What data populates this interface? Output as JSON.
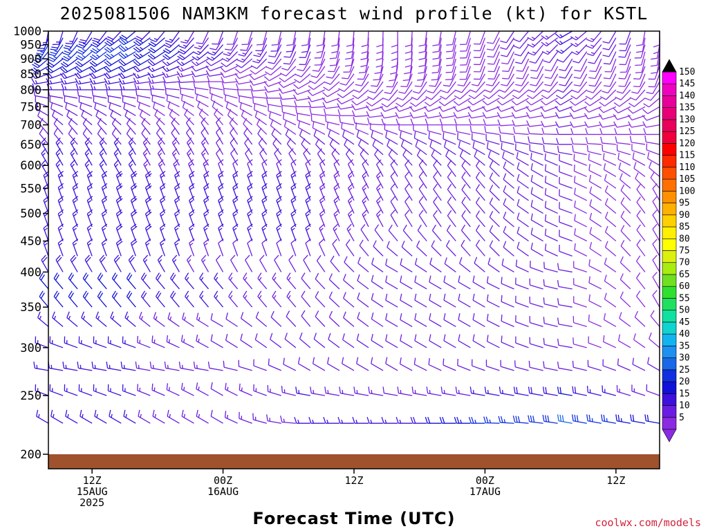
{
  "chart_data": {
    "type": "wind_barb_profile",
    "title": "2025081506 NAM3KM forecast wind profile (kt) for KSTL",
    "xlabel": "Forecast Time (UTC)",
    "credit": "coolwx.com/models",
    "y_axis": {
      "label": "",
      "scale": "log_pressure",
      "range_hpa": [
        1000,
        200
      ],
      "ticks": [
        "200",
        "250",
        "300",
        "350",
        "400",
        "450",
        "500",
        "550",
        "600",
        "650",
        "700",
        "750",
        "800",
        "850",
        "900",
        "950",
        "1000"
      ]
    },
    "x_axis": {
      "range_hours": [
        0,
        84
      ],
      "ticks": [
        {
          "hour": 6,
          "lines": [
            "12Z",
            "15AUG",
            "2025"
          ]
        },
        {
          "hour": 24,
          "lines": [
            "00Z",
            "16AUG"
          ]
        },
        {
          "hour": 42,
          "lines": [
            "12Z"
          ]
        },
        {
          "hour": 60,
          "lines": [
            "00Z",
            "17AUG"
          ]
        },
        {
          "hour": 78,
          "lines": [
            "12Z"
          ]
        }
      ]
    },
    "colorbar": {
      "units": "kt",
      "labels": [
        "5",
        "10",
        "15",
        "20",
        "25",
        "30",
        "35",
        "40",
        "45",
        "50",
        "55",
        "60",
        "65",
        "70",
        "75",
        "80",
        "85",
        "90",
        "95",
        "100",
        "105",
        "110",
        "115",
        "120",
        "125",
        "130",
        "135",
        "140",
        "145",
        "150"
      ],
      "colors": [
        "#8a2be2",
        "#6a1de0",
        "#3d10dd",
        "#1010d8",
        "#1030e0",
        "#1868e8",
        "#1e90f0",
        "#12b4f0",
        "#10d4d0",
        "#10e0a0",
        "#20e060",
        "#30e030",
        "#70e020",
        "#a8ec10",
        "#dcf010",
        "#ffff00",
        "#fff000",
        "#ffd000",
        "#ffb000",
        "#ff9000",
        "#ff7000",
        "#ff5000",
        "#ff2a00",
        "#ff0000",
        "#f0003c",
        "#e8005a",
        "#e80078",
        "#e8009a",
        "#f000c0",
        "#ff00ff"
      ]
    },
    "barb_levels_hpa": [
      1000,
      975,
      950,
      925,
      900,
      875,
      850,
      825,
      800,
      775,
      750,
      725,
      700,
      675,
      650,
      625,
      600,
      575,
      550,
      525,
      500,
      475,
      450,
      425,
      400,
      375,
      350,
      325,
      300,
      275,
      250,
      225
    ],
    "barb_times_hours": [
      0,
      2,
      4,
      6,
      8,
      10,
      12,
      14,
      16,
      18,
      20,
      22,
      24,
      26,
      28,
      30,
      32,
      34,
      36,
      38,
      40,
      42,
      44,
      46,
      48,
      50,
      52,
      54,
      56,
      58,
      60,
      62,
      64,
      66,
      68,
      70,
      72,
      74,
      76,
      78,
      80,
      82,
      84
    ],
    "barb_profiles": [
      {
        "hour": 0,
        "speed_kt": [
          15,
          20,
          25,
          25,
          22,
          20,
          18,
          15,
          15,
          12,
          10,
          10,
          10,
          12,
          12,
          15,
          15,
          15,
          15,
          15,
          15,
          15,
          15,
          15,
          18,
          20,
          20,
          15,
          15,
          15,
          15,
          15
        ],
        "dir_deg": [
          190,
          200,
          210,
          220,
          230,
          240,
          250,
          260,
          270,
          280,
          290,
          300,
          310,
          320,
          320,
          330,
          330,
          330,
          340,
          340,
          340,
          340,
          340,
          340,
          330,
          320,
          320,
          310,
          290,
          280,
          290,
          300
        ]
      },
      {
        "hour": 12,
        "speed_kt": [
          20,
          25,
          25,
          25,
          22,
          20,
          18,
          15,
          15,
          12,
          10,
          10,
          10,
          12,
          12,
          15,
          15,
          15,
          18,
          18,
          18,
          18,
          18,
          18,
          18,
          20,
          20,
          15,
          15,
          15,
          15,
          15
        ],
        "dir_deg": [
          230,
          240,
          240,
          240,
          240,
          245,
          250,
          260,
          270,
          280,
          290,
          300,
          310,
          320,
          320,
          330,
          330,
          330,
          340,
          340,
          340,
          340,
          340,
          340,
          330,
          320,
          320,
          310,
          290,
          280,
          290,
          300
        ]
      },
      {
        "hour": 24,
        "speed_kt": [
          10,
          12,
          15,
          15,
          12,
          10,
          10,
          8,
          8,
          8,
          8,
          8,
          8,
          10,
          10,
          12,
          12,
          12,
          15,
          15,
          15,
          15,
          15,
          12,
          12,
          15,
          15,
          12,
          12,
          12,
          12,
          12
        ],
        "dir_deg": [
          200,
          210,
          220,
          230,
          240,
          250,
          260,
          270,
          280,
          290,
          300,
          310,
          320,
          330,
          330,
          330,
          330,
          340,
          340,
          340,
          340,
          340,
          340,
          340,
          330,
          320,
          320,
          300,
          300,
          280,
          300,
          300
        ]
      },
      {
        "hour": 36,
        "speed_kt": [
          8,
          10,
          10,
          10,
          8,
          8,
          8,
          8,
          8,
          8,
          8,
          8,
          8,
          8,
          10,
          10,
          12,
          12,
          15,
          15,
          15,
          15,
          15,
          12,
          12,
          12,
          12,
          12,
          12,
          12,
          15,
          15
        ],
        "dir_deg": [
          190,
          190,
          200,
          200,
          210,
          220,
          230,
          240,
          250,
          260,
          270,
          280,
          290,
          300,
          310,
          320,
          330,
          340,
          340,
          340,
          340,
          340,
          340,
          340,
          330,
          320,
          320,
          320,
          310,
          300,
          280,
          270
        ]
      },
      {
        "hour": 48,
        "speed_kt": [
          8,
          8,
          8,
          8,
          8,
          8,
          8,
          8,
          8,
          8,
          8,
          8,
          8,
          8,
          10,
          10,
          10,
          10,
          12,
          12,
          12,
          12,
          10,
          10,
          10,
          10,
          10,
          10,
          10,
          12,
          12,
          15
        ],
        "dir_deg": [
          180,
          180,
          180,
          180,
          185,
          190,
          200,
          210,
          220,
          230,
          250,
          260,
          270,
          290,
          300,
          310,
          320,
          330,
          330,
          330,
          330,
          330,
          320,
          310,
          300,
          300,
          300,
          300,
          300,
          300,
          280,
          270
        ]
      },
      {
        "hour": 60,
        "speed_kt": [
          8,
          8,
          8,
          8,
          8,
          8,
          8,
          8,
          8,
          8,
          8,
          8,
          8,
          8,
          10,
          10,
          10,
          10,
          10,
          10,
          10,
          10,
          10,
          10,
          10,
          10,
          10,
          10,
          10,
          12,
          15,
          25
        ],
        "dir_deg": [
          200,
          200,
          200,
          200,
          200,
          200,
          210,
          220,
          230,
          240,
          250,
          260,
          270,
          280,
          290,
          300,
          310,
          320,
          320,
          320,
          320,
          320,
          320,
          320,
          310,
          300,
          300,
          300,
          300,
          290,
          280,
          270
        ]
      },
      {
        "hour": 72,
        "speed_kt": [
          15,
          15,
          15,
          12,
          10,
          10,
          10,
          10,
          10,
          10,
          10,
          10,
          10,
          10,
          10,
          10,
          10,
          10,
          10,
          10,
          10,
          10,
          10,
          10,
          10,
          10,
          10,
          10,
          10,
          12,
          20,
          30
        ],
        "dir_deg": [
          240,
          240,
          230,
          220,
          210,
          210,
          210,
          220,
          230,
          240,
          250,
          260,
          260,
          270,
          270,
          280,
          290,
          290,
          290,
          290,
          290,
          290,
          290,
          290,
          280,
          280,
          280,
          280,
          280,
          280,
          280,
          280
        ]
      },
      {
        "hour": 84,
        "speed_kt": [
          8,
          8,
          8,
          8,
          8,
          8,
          8,
          8,
          8,
          8,
          8,
          8,
          8,
          8,
          8,
          8,
          8,
          8,
          8,
          8,
          8,
          8,
          8,
          8,
          8,
          8,
          8,
          8,
          8,
          10,
          12,
          20
        ],
        "dir_deg": [
          180,
          180,
          190,
          190,
          190,
          200,
          200,
          210,
          220,
          230,
          240,
          250,
          260,
          270,
          280,
          290,
          300,
          310,
          320,
          330,
          330,
          330,
          330,
          330,
          330,
          330,
          330,
          320,
          310,
          300,
          290,
          280
        ]
      }
    ],
    "ground_color": "#a0522d"
  }
}
